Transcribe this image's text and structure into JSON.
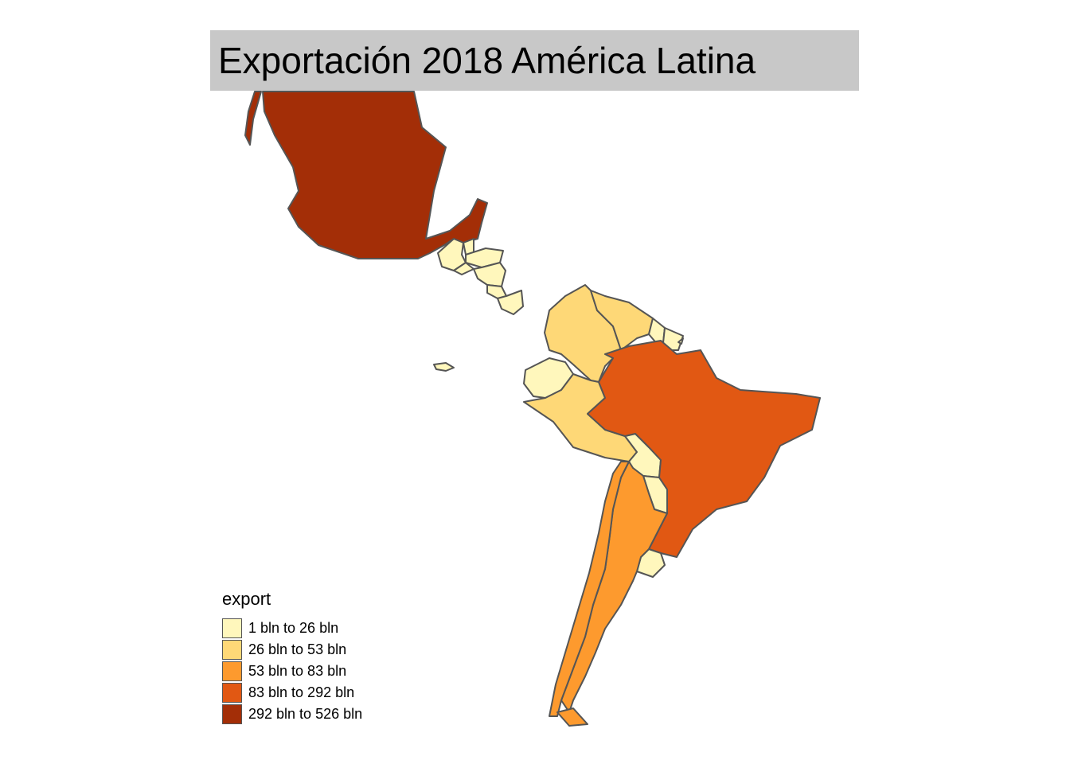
{
  "title": "Exportación 2018 América Latina",
  "legend": {
    "title": "export",
    "items": [
      {
        "label": "1 bln to 26 bln",
        "color": "#fff7bc"
      },
      {
        "label": "26 bln to 53 bln",
        "color": "#fed877"
      },
      {
        "label": "53 bln to 83 bln",
        "color": "#fd9a2e"
      },
      {
        "label": "83 bln to 292 bln",
        "color": "#e15813"
      },
      {
        "label": "292 bln to 526 bln",
        "color": "#a32e07"
      }
    ]
  },
  "map": {
    "border_color": "#555555",
    "regions": [
      {
        "name": "Mexico",
        "class": 4
      },
      {
        "name": "Guatemala",
        "class": 0
      },
      {
        "name": "Belize",
        "class": 0
      },
      {
        "name": "Honduras",
        "class": 0
      },
      {
        "name": "El Salvador",
        "class": 0
      },
      {
        "name": "Nicaragua",
        "class": 0
      },
      {
        "name": "Costa Rica",
        "class": 0
      },
      {
        "name": "Panama",
        "class": 0
      },
      {
        "name": "Colombia",
        "class": 1
      },
      {
        "name": "Venezuela",
        "class": 1
      },
      {
        "name": "Guyana",
        "class": 0
      },
      {
        "name": "Suriname",
        "class": 0
      },
      {
        "name": "Ecuador",
        "class": 0
      },
      {
        "name": "Peru",
        "class": 1
      },
      {
        "name": "Brazil",
        "class": 3
      },
      {
        "name": "Bolivia",
        "class": 0
      },
      {
        "name": "Paraguay",
        "class": 0
      },
      {
        "name": "Uruguay",
        "class": 0
      },
      {
        "name": "Chile",
        "class": 2
      },
      {
        "name": "Argentina",
        "class": 2
      }
    ]
  }
}
